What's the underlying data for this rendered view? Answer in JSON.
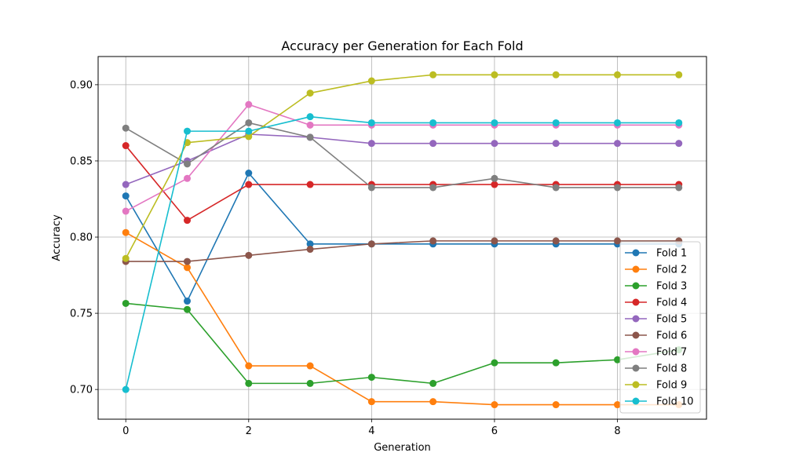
{
  "chart_data": {
    "type": "line",
    "title": "Accuracy per Generation for Each Fold",
    "xlabel": "Generation",
    "ylabel": "Accuracy",
    "x": [
      0,
      1,
      2,
      3,
      4,
      5,
      6,
      7,
      8,
      9
    ],
    "xlim": [
      -0.45,
      9.45
    ],
    "ylim": [
      0.6805,
      0.9185
    ],
    "xticks": [
      "0",
      "2",
      "4",
      "6",
      "8"
    ],
    "xtick_values": [
      0,
      2,
      4,
      6,
      8
    ],
    "yticks": [
      "0.70",
      "0.75",
      "0.80",
      "0.85",
      "0.90"
    ],
    "ytick_values": [
      0.7,
      0.75,
      0.8,
      0.85,
      0.9
    ],
    "grid": true,
    "legend_position": "lower-right",
    "series": [
      {
        "name": "Fold 1",
        "color": "#1f77b4",
        "values": [
          0.827,
          0.758,
          0.842,
          0.7955,
          0.7955,
          0.7955,
          0.7955,
          0.7955,
          0.7955,
          0.7955
        ]
      },
      {
        "name": "Fold 2",
        "color": "#ff7f0e",
        "values": [
          0.803,
          0.78,
          0.7155,
          0.7155,
          0.692,
          0.692,
          0.69,
          0.69,
          0.69,
          0.69
        ]
      },
      {
        "name": "Fold 3",
        "color": "#2ca02c",
        "values": [
          0.7565,
          0.7525,
          0.704,
          0.704,
          0.708,
          0.704,
          0.7175,
          0.7175,
          0.7195,
          0.726
        ]
      },
      {
        "name": "Fold 4",
        "color": "#d62728",
        "values": [
          0.86,
          0.811,
          0.8345,
          0.8345,
          0.8345,
          0.8345,
          0.8345,
          0.8345,
          0.8345,
          0.8345
        ]
      },
      {
        "name": "Fold 5",
        "color": "#9467bd",
        "values": [
          0.8345,
          0.85,
          0.8675,
          0.8655,
          0.8615,
          0.8615,
          0.8615,
          0.8615,
          0.8615,
          0.8615
        ]
      },
      {
        "name": "Fold 6",
        "color": "#8c564b",
        "values": [
          0.784,
          0.784,
          0.788,
          0.792,
          0.7955,
          0.7975,
          0.7975,
          0.7975,
          0.7975,
          0.7975
        ]
      },
      {
        "name": "Fold 7",
        "color": "#e377c2",
        "values": [
          0.817,
          0.8385,
          0.887,
          0.8735,
          0.8735,
          0.8735,
          0.8735,
          0.8735,
          0.8735,
          0.8735
        ]
      },
      {
        "name": "Fold 8",
        "color": "#7f7f7f",
        "values": [
          0.8715,
          0.848,
          0.875,
          0.8655,
          0.8325,
          0.8325,
          0.8385,
          0.8325,
          0.8325,
          0.8325
        ]
      },
      {
        "name": "Fold 9",
        "color": "#bcbd22",
        "values": [
          0.786,
          0.862,
          0.866,
          0.8945,
          0.9025,
          0.9065,
          0.9065,
          0.9065,
          0.9065,
          0.9065
        ]
      },
      {
        "name": "Fold 10",
        "color": "#17becf",
        "values": [
          0.7,
          0.8695,
          0.8695,
          0.879,
          0.875,
          0.875,
          0.875,
          0.875,
          0.875,
          0.875
        ]
      }
    ]
  }
}
